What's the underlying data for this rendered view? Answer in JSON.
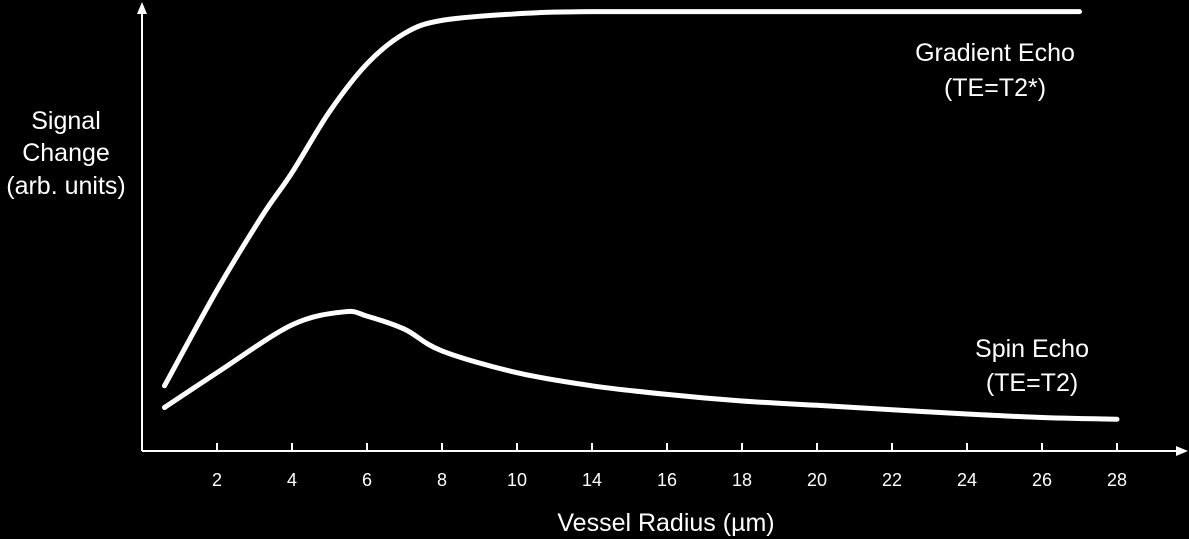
{
  "chart_data": {
    "type": "line",
    "title": "",
    "xlabel": "Vessel Radius (µm)",
    "ylabel_lines": [
      "Signal",
      "Change",
      "(arb. units)"
    ],
    "x_tick_labels": [
      "2",
      "4",
      "6",
      "8",
      "10",
      "14",
      "16",
      "18",
      "20",
      "22",
      "24",
      "26",
      "28"
    ],
    "ylim": [
      0,
      100
    ],
    "y_ticks_shown": false,
    "grid": false,
    "colors": {
      "background": "#000000",
      "foreground": "#ffffff"
    },
    "series": [
      {
        "label_lines": [
          "Gradient Echo",
          "(TE=T2*)"
        ],
        "values": [
          {
            "tick": 0.3,
            "y": 15
          },
          {
            "tick": 1,
            "y": 37
          },
          {
            "tick": 1.6,
            "y": 54
          },
          {
            "tick": 2,
            "y": 64
          },
          {
            "tick": 2.5,
            "y": 78
          },
          {
            "tick": 3,
            "y": 89
          },
          {
            "tick": 3.5,
            "y": 96
          },
          {
            "tick": 4,
            "y": 99
          },
          {
            "tick": 5,
            "y": 100.5
          },
          {
            "tick": 6,
            "y": 101
          },
          {
            "tick": 9,
            "y": 101
          },
          {
            "tick": 12.5,
            "y": 101
          }
        ]
      },
      {
        "label_lines": [
          "Spin Echo",
          "(TE=T2)"
        ],
        "values": [
          {
            "tick": 0.3,
            "y": 10
          },
          {
            "tick": 1,
            "y": 18
          },
          {
            "tick": 2,
            "y": 29
          },
          {
            "tick": 2.7,
            "y": 32
          },
          {
            "tick": 3,
            "y": 31
          },
          {
            "tick": 3.5,
            "y": 28
          },
          {
            "tick": 4,
            "y": 23
          },
          {
            "tick": 5,
            "y": 18
          },
          {
            "tick": 6,
            "y": 15
          },
          {
            "tick": 7,
            "y": 13
          },
          {
            "tick": 8,
            "y": 11.5
          },
          {
            "tick": 9,
            "y": 10.5
          },
          {
            "tick": 10,
            "y": 9.5
          },
          {
            "tick": 11,
            "y": 8.5
          },
          {
            "tick": 12,
            "y": 7.7
          },
          {
            "tick": 13,
            "y": 7.3
          }
        ]
      }
    ]
  }
}
